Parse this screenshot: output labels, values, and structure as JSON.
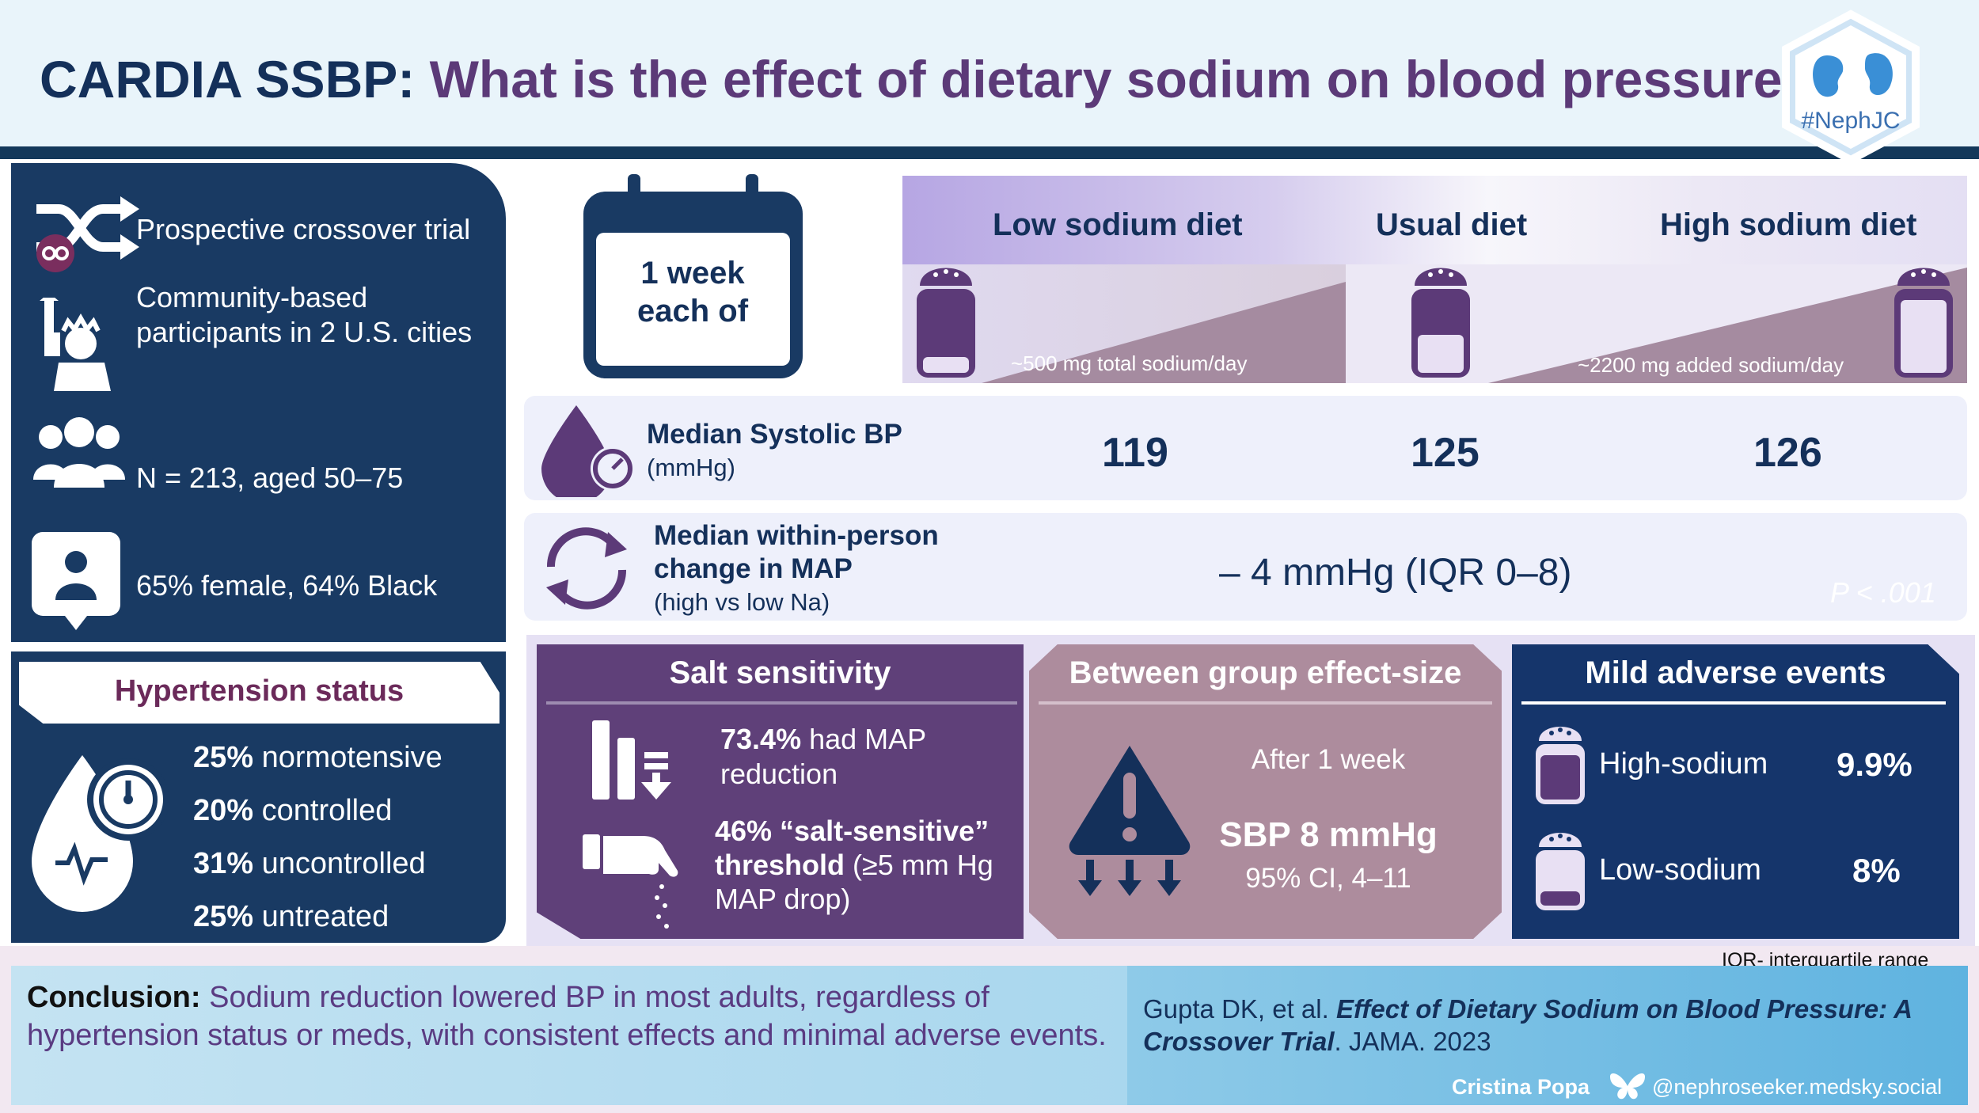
{
  "header": {
    "title_prefix": "CARDIA SSBP:",
    "title_question": "What is the effect of dietary sodium on blood pressure?",
    "logo_text": "#NephJC"
  },
  "study": {
    "design": "Prospective crossover trial",
    "population": "Community-based participants in 2 U.S. cities",
    "n_age": "N = 213, aged 50–75",
    "demographics": "65% female, 64% Black"
  },
  "hypertension": {
    "title": "Hypertension status",
    "items": [
      {
        "pct": "25%",
        "label": "normotensive"
      },
      {
        "pct": "20%",
        "label": "controlled"
      },
      {
        "pct": "31%",
        "label": "uncontrolled"
      },
      {
        "pct": "25%",
        "label": "untreated"
      }
    ]
  },
  "calendar": {
    "line1": "1 week",
    "line2": "each of"
  },
  "diets": {
    "low": {
      "label": "Low sodium diet",
      "note": "~500 mg total sodium/day"
    },
    "usual": {
      "label": "Usual diet"
    },
    "high": {
      "label": "High sodium diet",
      "note": "~2200 mg added sodium/day"
    }
  },
  "systolic": {
    "label": "Median Systolic BP",
    "unit": "(mmHg)",
    "low": "119",
    "usual": "125",
    "high": "126"
  },
  "map_change": {
    "label_line1": "Median within-person",
    "label_line2": "change in MAP",
    "sub": "(high vs low Na)",
    "value": "– 4 mmHg (IQR 0–8)",
    "p_value": "P < .001"
  },
  "salt_sensitivity": {
    "title": "Salt sensitivity",
    "stat1_value": "73.4%",
    "stat1_text1": "had MAP",
    "stat1_text2": "reduction",
    "stat2_line1": "46% “salt-sensitive”",
    "stat2_line2_bold": "threshold",
    "stat2_line2_rest": "(≥5 mm Hg",
    "stat2_line3": "MAP drop)"
  },
  "effect_size": {
    "title": "Between group effect-size",
    "after": "After 1 week",
    "sbp": "SBP 8 mmHg",
    "ci": "95% CI, 4–11"
  },
  "adverse": {
    "title": "Mild adverse events",
    "high_label": "High-sodium",
    "high_value": "9.9%",
    "low_label": "Low-sodium",
    "low_value": "8%"
  },
  "footer": {
    "iqr_note": "IQR- interquartile range",
    "conclusion_label": "Conclusion:",
    "conclusion_text": "Sodium reduction lowered BP in most adults, regardless of hypertension status or meds, with consistent effects and minimal adverse events.",
    "citation_authors": "Gupta DK, et al.",
    "citation_title": "Effect of Dietary Sodium on Blood Pressure: A Crossover Trial",
    "citation_journal": ". JAMA. 2023",
    "author": "Cristina Popa",
    "handle": "@nephroseeker.medsky.social"
  },
  "colors": {
    "navy": "#193a63",
    "purple": "#5f4079",
    "mauve": "#ad8c9d",
    "title_purple": "#5c3a78"
  }
}
